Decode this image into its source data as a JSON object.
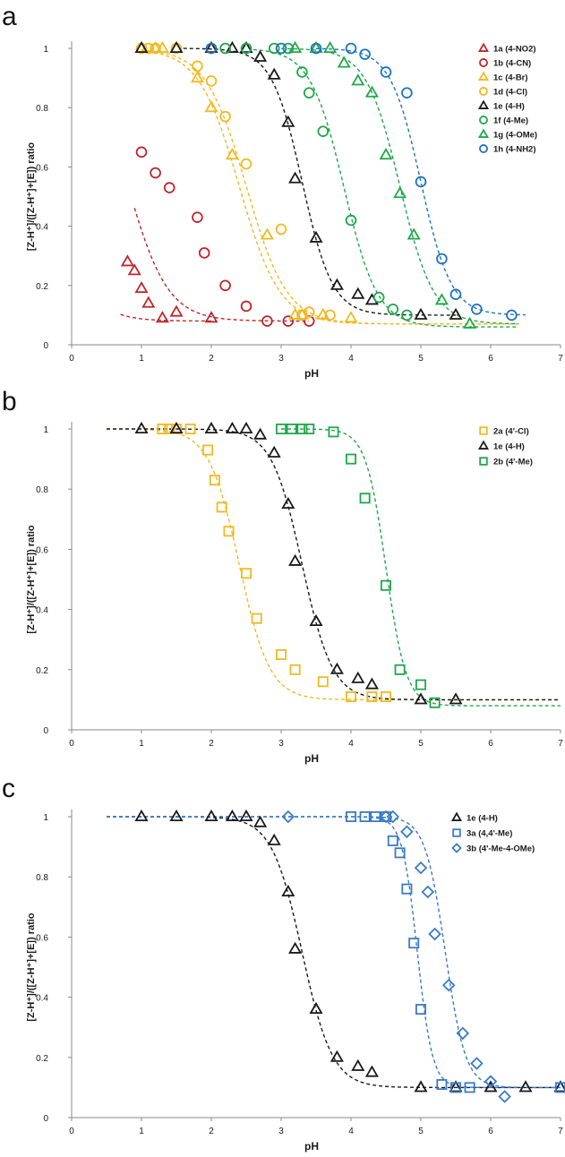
{
  "chart_data": [
    {
      "panel": "a",
      "type": "scatter",
      "xlabel": "pH",
      "ylabel": "[Z-H⁺]/([Z-H⁺]+[E]) ratio",
      "xlim": [
        0,
        7
      ],
      "ylim": [
        0,
        1
      ],
      "x_ticks": [
        "0",
        "1",
        "2",
        "3",
        "4",
        "5",
        "6",
        "7"
      ],
      "y_ticks": [
        "0",
        "0.2",
        "0.4",
        "0.6",
        "0.8",
        "1"
      ],
      "legend_position": "top-right",
      "series": [
        {
          "name": "1a (4-NO2)",
          "marker": "triangle",
          "color": "#c0262c",
          "points": [
            [
              0.8,
              0.28
            ],
            [
              0.9,
              0.25
            ],
            [
              1.0,
              0.19
            ],
            [
              1.1,
              0.14
            ],
            [
              1.3,
              0.09
            ],
            [
              1.5,
              0.11
            ],
            [
              2.0,
              0.09
            ]
          ],
          "fit": {
            "top": 1.0,
            "bottom": 0.08,
            "pKa": -0.3,
            "slope": 1.6,
            "x_range": [
              0.7,
              2.0
            ]
          }
        },
        {
          "name": "1b (4-CN)",
          "marker": "circle",
          "color": "#c0262c",
          "points": [
            [
              1.0,
              0.65
            ],
            [
              1.2,
              0.58
            ],
            [
              1.4,
              0.53
            ],
            [
              1.8,
              0.43
            ],
            [
              1.9,
              0.31
            ],
            [
              2.2,
              0.2
            ],
            [
              2.5,
              0.13
            ],
            [
              2.8,
              0.08
            ],
            [
              3.1,
              0.08
            ],
            [
              3.4,
              0.08
            ]
          ],
          "fit": {
            "top": 1.0,
            "bottom": 0.08,
            "pKa": 0.8,
            "slope": 1.5,
            "x_range": [
              0.9,
              3.4
            ]
          }
        },
        {
          "name": "1c (4-Br)",
          "marker": "triangle",
          "color": "#f2b91f",
          "points": [
            [
              1.0,
              1.0
            ],
            [
              1.2,
              1.0
            ],
            [
              1.3,
              1.0
            ],
            [
              1.8,
              0.9
            ],
            [
              2.0,
              0.8
            ],
            [
              2.3,
              0.64
            ],
            [
              2.8,
              0.37
            ],
            [
              3.2,
              0.1
            ],
            [
              3.3,
              0.1
            ],
            [
              3.6,
              0.1
            ],
            [
              4.0,
              0.09
            ]
          ],
          "fit": {
            "top": 1.0,
            "bottom": 0.07,
            "pKa": 2.4,
            "slope": 1.5,
            "x_range": [
              1.0,
              6.4
            ]
          }
        },
        {
          "name": "1d (4-Cl)",
          "marker": "circle",
          "color": "#f2b91f",
          "points": [
            [
              1.0,
              1.0
            ],
            [
              1.1,
              1.0
            ],
            [
              1.2,
              1.0
            ],
            [
              1.5,
              1.0
            ],
            [
              1.8,
              0.94
            ],
            [
              2.0,
              0.89
            ],
            [
              2.2,
              0.77
            ],
            [
              2.5,
              0.61
            ],
            [
              3.0,
              0.39
            ],
            [
              3.3,
              0.1
            ],
            [
              3.4,
              0.11
            ],
            [
              3.7,
              0.1
            ]
          ],
          "fit": {
            "top": 1.0,
            "bottom": 0.07,
            "pKa": 2.5,
            "slope": 1.5,
            "x_range": [
              1.0,
              6.4
            ]
          }
        },
        {
          "name": "1e (4-H)",
          "marker": "triangle-open",
          "color": "#1a1a1a",
          "points": [
            [
              1.0,
              1.0
            ],
            [
              1.5,
              1.0
            ],
            [
              2.0,
              1.0
            ],
            [
              2.3,
              1.0
            ],
            [
              2.5,
              1.0
            ],
            [
              2.7,
              0.97
            ],
            [
              2.9,
              0.91
            ],
            [
              3.1,
              0.75
            ],
            [
              3.2,
              0.56
            ],
            [
              3.5,
              0.36
            ],
            [
              3.8,
              0.2
            ],
            [
              4.1,
              0.17
            ],
            [
              4.3,
              0.15
            ],
            [
              5.0,
              0.1
            ],
            [
              5.5,
              0.1
            ]
          ],
          "fit": {
            "top": 1.0,
            "bottom": 0.1,
            "pKa": 3.3,
            "slope": 2.0,
            "x_range": [
              1.6,
              5.5
            ]
          }
        },
        {
          "name": "1f (4-Me)",
          "marker": "circle",
          "color": "#1fa84a",
          "points": [
            [
              2.2,
              1.0
            ],
            [
              2.5,
              1.0
            ],
            [
              2.9,
              1.0
            ],
            [
              3.1,
              1.0
            ],
            [
              3.3,
              0.92
            ],
            [
              3.4,
              0.85
            ],
            [
              3.6,
              0.72
            ],
            [
              4.0,
              0.42
            ],
            [
              4.4,
              0.16
            ],
            [
              4.6,
              0.12
            ],
            [
              4.8,
              0.1
            ]
          ],
          "fit": {
            "top": 1.0,
            "bottom": 0.06,
            "pKa": 3.9,
            "slope": 1.8,
            "x_range": [
              2.6,
              6.4
            ]
          }
        },
        {
          "name": "1g (4-OMe)",
          "marker": "triangle",
          "color": "#1fa84a",
          "points": [
            [
              3.2,
              1.0
            ],
            [
              3.5,
              1.0
            ],
            [
              3.7,
              1.0
            ],
            [
              3.9,
              0.95
            ],
            [
              4.1,
              0.89
            ],
            [
              4.3,
              0.85
            ],
            [
              4.5,
              0.64
            ],
            [
              4.7,
              0.51
            ],
            [
              4.9,
              0.37
            ],
            [
              5.3,
              0.15
            ],
            [
              5.7,
              0.07
            ]
          ],
          "fit": {
            "top": 1.0,
            "bottom": 0.07,
            "pKa": 4.7,
            "slope": 1.8,
            "x_range": [
              3.0,
              6.4
            ]
          }
        },
        {
          "name": "1h (4-NH2)",
          "marker": "circle",
          "color": "#1f74c4",
          "points": [
            [
              2.0,
              1.0
            ],
            [
              3.0,
              1.0
            ],
            [
              3.5,
              1.0
            ],
            [
              4.0,
              1.0
            ],
            [
              4.2,
              0.98
            ],
            [
              4.5,
              0.92
            ],
            [
              4.8,
              0.85
            ],
            [
              5.0,
              0.55
            ],
            [
              5.3,
              0.29
            ],
            [
              5.5,
              0.17
            ],
            [
              5.8,
              0.12
            ],
            [
              6.3,
              0.1
            ]
          ],
          "fit": {
            "top": 1.0,
            "bottom": 0.1,
            "pKa": 5.0,
            "slope": 2.0,
            "x_range": [
              3.5,
              6.5
            ]
          }
        }
      ]
    },
    {
      "panel": "b",
      "type": "scatter",
      "xlabel": "pH",
      "ylabel": "[Z-H⁺]/([Z-H⁺]+[E]) ratio",
      "xlim": [
        0,
        7
      ],
      "ylim": [
        0,
        1
      ],
      "x_ticks": [
        "0",
        "1",
        "2",
        "3",
        "4",
        "5",
        "6",
        "7"
      ],
      "y_ticks": [
        "0",
        "0.2",
        "0.4",
        "0.6",
        "0.8",
        "1"
      ],
      "legend_position": "top-right",
      "series": [
        {
          "name": "2a (4'-Cl)",
          "marker": "square",
          "color": "#f2b91f",
          "points": [
            [
              1.3,
              1.0
            ],
            [
              1.4,
              1.0
            ],
            [
              1.5,
              1.0
            ],
            [
              1.7,
              1.0
            ],
            [
              1.95,
              0.93
            ],
            [
              2.05,
              0.83
            ],
            [
              2.15,
              0.74
            ],
            [
              2.25,
              0.66
            ],
            [
              2.5,
              0.52
            ],
            [
              2.65,
              0.37
            ],
            [
              3.0,
              0.25
            ],
            [
              3.2,
              0.2
            ],
            [
              3.6,
              0.16
            ],
            [
              4.0,
              0.11
            ],
            [
              4.3,
              0.11
            ],
            [
              4.5,
              0.11
            ]
          ],
          "fit": {
            "top": 1.0,
            "bottom": 0.1,
            "pKa": 2.4,
            "slope": 2.0,
            "x_range": [
              0.5,
              7.0
            ]
          }
        },
        {
          "name": "1e (4-H)",
          "marker": "triangle-open",
          "color": "#1a1a1a",
          "points": [
            [
              1.0,
              1.0
            ],
            [
              1.5,
              1.0
            ],
            [
              2.0,
              1.0
            ],
            [
              2.3,
              1.0
            ],
            [
              2.5,
              1.0
            ],
            [
              2.7,
              0.98
            ],
            [
              2.9,
              0.92
            ],
            [
              3.1,
              0.75
            ],
            [
              3.2,
              0.56
            ],
            [
              3.5,
              0.36
            ],
            [
              3.8,
              0.2
            ],
            [
              4.1,
              0.17
            ],
            [
              4.3,
              0.15
            ],
            [
              5.0,
              0.1
            ],
            [
              5.5,
              0.1
            ]
          ],
          "fit": {
            "top": 1.0,
            "bottom": 0.1,
            "pKa": 3.3,
            "slope": 2.0,
            "x_range": [
              0.5,
              7.0
            ]
          }
        },
        {
          "name": "2b (4'-Me)",
          "marker": "square",
          "color": "#1fa84a",
          "points": [
            [
              3.0,
              1.0
            ],
            [
              3.15,
              1.0
            ],
            [
              3.3,
              1.0
            ],
            [
              3.4,
              1.0
            ],
            [
              3.75,
              0.99
            ],
            [
              4.0,
              0.9
            ],
            [
              4.2,
              0.77
            ],
            [
              4.5,
              0.48
            ],
            [
              4.7,
              0.2
            ],
            [
              5.0,
              0.15
            ],
            [
              5.2,
              0.09
            ]
          ],
          "fit": {
            "top": 1.0,
            "bottom": 0.08,
            "pKa": 4.5,
            "slope": 3.0,
            "x_range": [
              3.0,
              7.0
            ]
          }
        }
      ]
    },
    {
      "panel": "c",
      "type": "scatter",
      "xlabel": "pH",
      "ylabel": "[Z-H⁺]/([Z-H⁺]+[E]) ratio",
      "xlim": [
        0,
        7
      ],
      "ylim": [
        0,
        1
      ],
      "x_ticks": [
        "0",
        "1",
        "2",
        "3",
        "4",
        "5",
        "6",
        "7"
      ],
      "y_ticks": [
        "0",
        "0.2",
        "0.4",
        "0.6",
        "0.8",
        "1"
      ],
      "legend_position": "top-right",
      "series": [
        {
          "name": "1e (4-H)",
          "marker": "triangle-open",
          "color": "#1a1a1a",
          "points": [
            [
              1.0,
              1.0
            ],
            [
              1.5,
              1.0
            ],
            [
              2.0,
              1.0
            ],
            [
              2.3,
              1.0
            ],
            [
              2.5,
              1.0
            ],
            [
              2.7,
              0.98
            ],
            [
              2.9,
              0.92
            ],
            [
              3.1,
              0.75
            ],
            [
              3.2,
              0.56
            ],
            [
              3.5,
              0.36
            ],
            [
              3.8,
              0.2
            ],
            [
              4.1,
              0.17
            ],
            [
              4.3,
              0.15
            ],
            [
              5.0,
              0.1
            ],
            [
              5.5,
              0.1
            ],
            [
              6.0,
              0.1
            ],
            [
              6.5,
              0.1
            ],
            [
              7.0,
              0.1
            ]
          ],
          "fit": {
            "top": 1.0,
            "bottom": 0.1,
            "pKa": 3.3,
            "slope": 2.0,
            "x_range": [
              0.5,
              7.0
            ]
          }
        },
        {
          "name": "3a (4,4'-Me)",
          "marker": "square",
          "color": "#3a7bc8",
          "points": [
            [
              4.0,
              1.0
            ],
            [
              4.2,
              1.0
            ],
            [
              4.35,
              1.0
            ],
            [
              4.5,
              1.0
            ],
            [
              4.6,
              0.92
            ],
            [
              4.7,
              0.88
            ],
            [
              4.8,
              0.76
            ],
            [
              4.9,
              0.58
            ],
            [
              5.0,
              0.36
            ],
            [
              5.3,
              0.11
            ],
            [
              5.5,
              0.1
            ],
            [
              5.7,
              0.1
            ],
            [
              7.0,
              0.1
            ]
          ],
          "fit": {
            "top": 1.0,
            "bottom": 0.1,
            "pKa": 4.95,
            "slope": 4.0,
            "x_range": [
              0.5,
              7.0
            ]
          }
        },
        {
          "name": "3b (4'-Me-4-OMe)",
          "marker": "diamond",
          "color": "#3a7bc8",
          "points": [
            [
              3.1,
              1.0
            ],
            [
              4.5,
              1.0
            ],
            [
              4.6,
              1.0
            ],
            [
              4.8,
              0.95
            ],
            [
              5.0,
              0.83
            ],
            [
              5.1,
              0.75
            ],
            [
              5.2,
              0.61
            ],
            [
              5.4,
              0.44
            ],
            [
              5.6,
              0.28
            ],
            [
              5.8,
              0.18
            ],
            [
              6.0,
              0.12
            ],
            [
              6.2,
              0.07
            ]
          ],
          "fit": {
            "top": 1.0,
            "bottom": 0.1,
            "pKa": 5.35,
            "slope": 3.0,
            "x_range": [
              0.5,
              7.0
            ]
          }
        }
      ]
    }
  ]
}
